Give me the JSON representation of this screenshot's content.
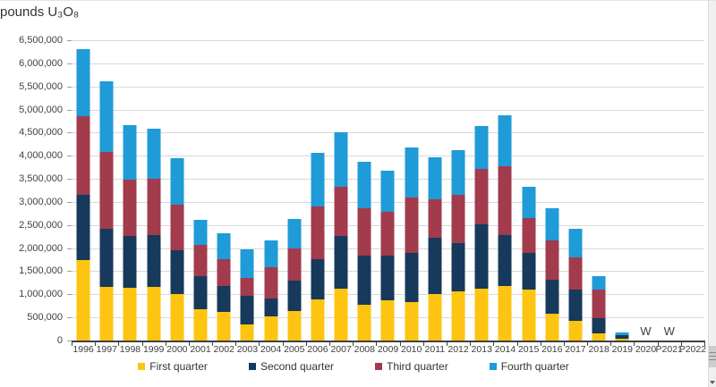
{
  "title": "pounds U₃O₈",
  "chart_data": {
    "type": "bar",
    "stacked": true,
    "title": "pounds U₃O₈",
    "xlabel": "",
    "ylabel": "pounds U₃O₈",
    "ylim": [
      0,
      6500000
    ],
    "ytick_step": 500000,
    "ytick_labels": [
      "6,500,000",
      "6,000,000",
      "5,500,000",
      "5,000,000",
      "4,500,000",
      "4,000,000",
      "3,500,000",
      "3,000,000",
      "2,500,000",
      "2,000,000",
      "1,500,000",
      "1,000,000",
      "500,000",
      "0"
    ],
    "grid": true,
    "legend_position": "bottom",
    "categories": [
      "1996",
      "1997",
      "1998",
      "1999",
      "2000",
      "2001",
      "2002",
      "2003",
      "2004",
      "2005",
      "2006",
      "2007",
      "2008",
      "2009",
      "2010",
      "2011",
      "2012",
      "2013",
      "2014",
      "2015",
      "2016",
      "2017",
      "2018",
      "2019",
      "2020",
      "P2021",
      "P2022"
    ],
    "series": [
      {
        "name": "First quarter",
        "color": "#fdc511",
        "values": [
          1750000,
          1160000,
          1150000,
          1170000,
          1000000,
          675000,
          615000,
          355000,
          515000,
          645000,
          900000,
          1130000,
          780000,
          870000,
          840000,
          1000000,
          1060000,
          1130000,
          1190000,
          1100000,
          580000,
          420000,
          160000,
          30000,
          0,
          0,
          0
        ]
      },
      {
        "name": "Second quarter",
        "color": "#16395c",
        "values": [
          1400000,
          1260000,
          1120000,
          1120000,
          950000,
          715000,
          575000,
          610000,
          390000,
          645000,
          870000,
          1130000,
          1060000,
          970000,
          1060000,
          1220000,
          1040000,
          1380000,
          1100000,
          800000,
          740000,
          680000,
          320000,
          95000,
          0,
          0,
          0
        ]
      },
      {
        "name": "Third quarter",
        "color": "#a23b4c",
        "values": [
          1700000,
          1670000,
          1210000,
          1220000,
          1000000,
          680000,
          580000,
          390000,
          675000,
          710000,
          1130000,
          1060000,
          1030000,
          950000,
          1200000,
          840000,
          1060000,
          1200000,
          1480000,
          740000,
          840000,
          700000,
          620000,
          0,
          0,
          0,
          0
        ]
      },
      {
        "name": "Fourth quarter",
        "color": "#1f9bd7",
        "values": [
          1450000,
          1520000,
          1190000,
          1080000,
          1000000,
          540000,
          550000,
          620000,
          580000,
          640000,
          1160000,
          1190000,
          1000000,
          890000,
          1090000,
          910000,
          970000,
          930000,
          1100000,
          680000,
          710000,
          620000,
          300000,
          50000,
          0,
          0,
          0
        ]
      }
    ],
    "annotations": [
      {
        "category": "2020",
        "text": "W"
      },
      {
        "category": "P2021",
        "text": "W"
      }
    ]
  },
  "legend": {
    "items": [
      {
        "label": "First quarter",
        "color": "#fdc511"
      },
      {
        "label": "Second quarter",
        "color": "#16395c"
      },
      {
        "label": "Third quarter",
        "color": "#a23b4c"
      },
      {
        "label": "Fourth quarter",
        "color": "#1f9bd7"
      }
    ]
  },
  "colors": {
    "gridline": "#d9d9d9",
    "axis_line": "#404040",
    "axis_text": "#404040",
    "title_text": "#333333"
  }
}
